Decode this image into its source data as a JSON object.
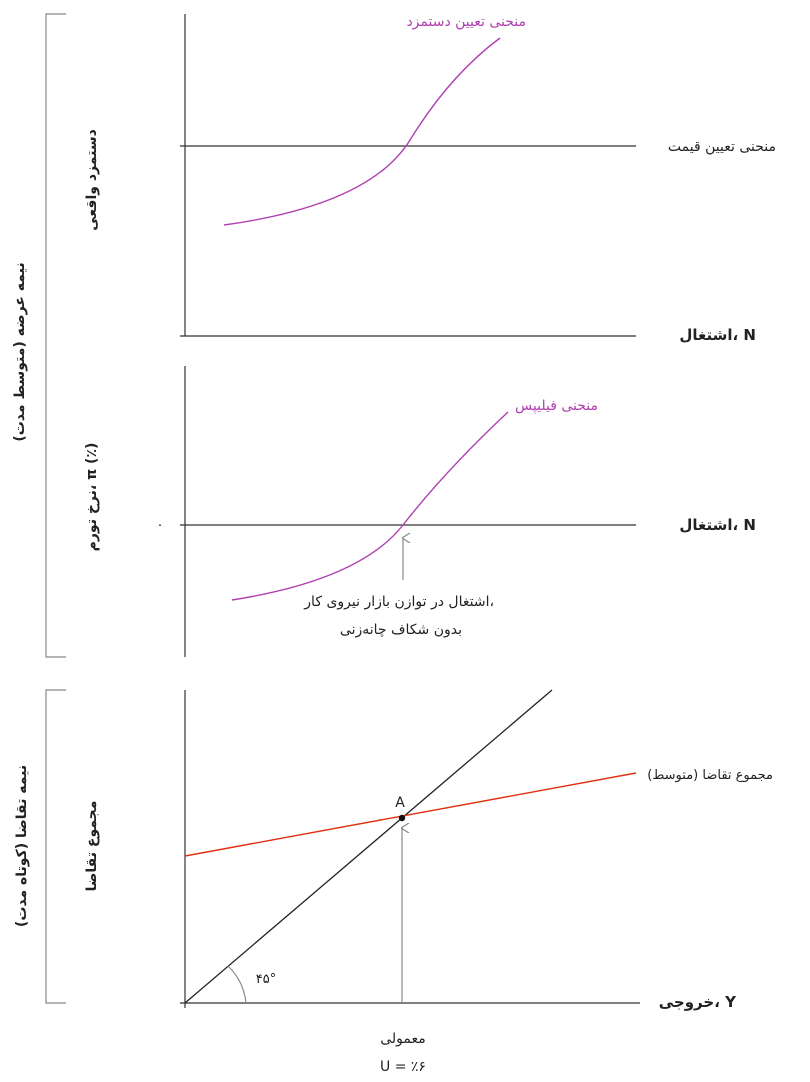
{
  "supply_side": {
    "bracket_label": "نیمه عرضه (متوسط مدت)",
    "wage_panel": {
      "ylabel": "دستمزد واقعی",
      "xlabel": "اشتغال، N",
      "wage_setting_curve": "منحنی تعیین دستمزد",
      "price_setting_curve": "منحنی تعیین قیمت"
    },
    "phillips_panel": {
      "ylabel": "نرخ تورم، π (٪)",
      "xlabel": "اشتغال، N",
      "zero_tick": "۰",
      "phillips_curve": "منحنی فیلیپس",
      "annotation_line1": "اشتغال در توازن بازار نیروی کار،",
      "annotation_line2": "بدون شکاف چانه‌زنی"
    }
  },
  "demand_side": {
    "bracket_label": "نیمه تقاضا (کوتاه مدت)",
    "ylabel": "مجموع تقاضا",
    "xlabel": "خروجی، Y",
    "ad_line": "مجموع تقاضا (متوسط)",
    "point_label": "A",
    "angle_label": "۴۵°",
    "normal_label": "معمولی",
    "unemployment_label": "U = ٪۶"
  },
  "colors": {
    "purple": "#b040b0",
    "red": "#e03010",
    "axis": "#333333",
    "gray": "#888888"
  }
}
